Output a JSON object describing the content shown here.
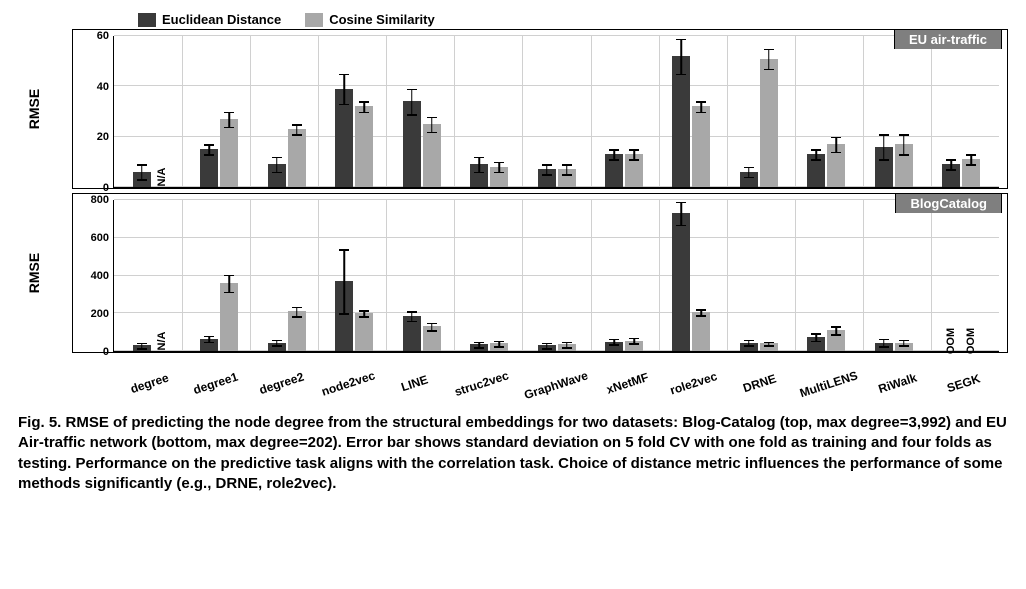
{
  "legend": {
    "series1": {
      "label": "Euclidean Distance",
      "color": "#3a3a3a"
    },
    "series2": {
      "label": "Cosine Similarity",
      "color": "#a8a8a8"
    }
  },
  "categories": [
    "degree",
    "degree1",
    "degree2",
    "node2vec",
    "LINE",
    "struc2vec",
    "GraphWave",
    "xNetMF",
    "role2vec",
    "DRNE",
    "MultiLENS",
    "RiWalk",
    "SEGK"
  ],
  "grid_color": "#d0d0d0",
  "background_color": "#ffffff",
  "err_color": "#000000",
  "ylabel": "RMSE",
  "panels": [
    {
      "title": "EU air-traffic",
      "ylim": [
        0,
        60
      ],
      "yticks": [
        0,
        20,
        40,
        60
      ],
      "data": [
        {
          "v1": 6,
          "e1": 3,
          "v2": null,
          "e2": 0,
          "na2": "N/A"
        },
        {
          "v1": 15,
          "e1": 2,
          "v2": 27,
          "e2": 3
        },
        {
          "v1": 9,
          "e1": 3,
          "v2": 23,
          "e2": 2
        },
        {
          "v1": 39,
          "e1": 6,
          "v2": 32,
          "e2": 2
        },
        {
          "v1": 34,
          "e1": 5,
          "v2": 25,
          "e2": 3
        },
        {
          "v1": 9,
          "e1": 3,
          "v2": 8,
          "e2": 2
        },
        {
          "v1": 7,
          "e1": 2,
          "v2": 7,
          "e2": 2
        },
        {
          "v1": 13,
          "e1": 2,
          "v2": 13,
          "e2": 2
        },
        {
          "v1": 52,
          "e1": 7,
          "v2": 32,
          "e2": 2
        },
        {
          "v1": 6,
          "e1": 2,
          "v2": 51,
          "e2": 4
        },
        {
          "v1": 13,
          "e1": 2,
          "v2": 17,
          "e2": 3
        },
        {
          "v1": 16,
          "e1": 5,
          "v2": 17,
          "e2": 4
        },
        {
          "v1": 9,
          "e1": 2,
          "v2": 11,
          "e2": 2
        }
      ]
    },
    {
      "title": "BlogCatalog",
      "ylim": [
        0,
        800
      ],
      "yticks": [
        0,
        200,
        400,
        600,
        800
      ],
      "data": [
        {
          "v1": 30,
          "e1": 15,
          "v2": null,
          "e2": 0,
          "na2": "N/A"
        },
        {
          "v1": 65,
          "e1": 15,
          "v2": 360,
          "e2": 45
        },
        {
          "v1": 45,
          "e1": 15,
          "v2": 210,
          "e2": 25
        },
        {
          "v1": 370,
          "e1": 170,
          "v2": 200,
          "e2": 15
        },
        {
          "v1": 185,
          "e1": 25,
          "v2": 130,
          "e2": 20
        },
        {
          "v1": 35,
          "e1": 15,
          "v2": 40,
          "e2": 15
        },
        {
          "v1": 30,
          "e1": 15,
          "v2": 35,
          "e2": 15
        },
        {
          "v1": 50,
          "e1": 15,
          "v2": 55,
          "e2": 15
        },
        {
          "v1": 730,
          "e1": 60,
          "v2": 205,
          "e2": 15
        },
        {
          "v1": 45,
          "e1": 15,
          "v2": 40,
          "e2": 10
        },
        {
          "v1": 75,
          "e1": 20,
          "v2": 110,
          "e2": 20
        },
        {
          "v1": 45,
          "e1": 20,
          "v2": 45,
          "e2": 15
        },
        {
          "v1": null,
          "e1": 0,
          "v2": null,
          "e2": 0,
          "na1": "OOM",
          "na2": "OOM"
        }
      ]
    }
  ],
  "caption": "Fig. 5.  RMSE of predicting the node degree from the structural embeddings for two datasets: Blog-Catalog (top, max degree=3,992) and EU Air-traffic network (bottom, max degree=202). Error bar shows standard deviation on 5 fold CV with one fold as training and four folds as testing. Performance on the predictive task aligns with the correlation task. Choice of distance metric influences the performance of some methods significantly (e.g., DRNE, role2vec).",
  "label_fontsize": 14,
  "tick_fontsize": 11
}
